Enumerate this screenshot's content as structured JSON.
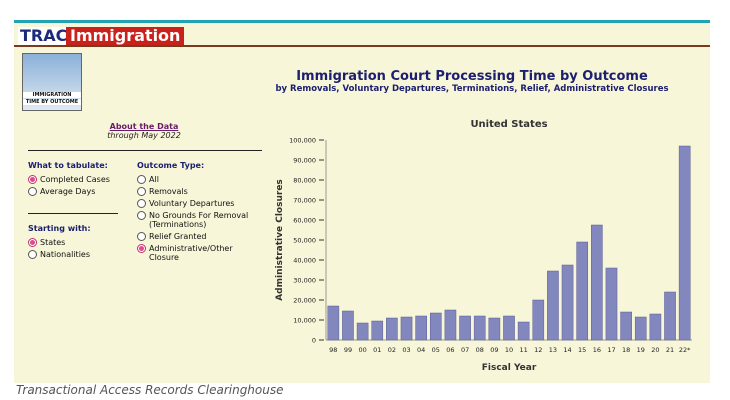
{
  "header": {
    "brand": "TRAC",
    "product": "Immigration",
    "logo_lines": [
      "IMMIGRATION",
      "TIME BY OUTCOME"
    ]
  },
  "page": {
    "title": "Immigration Court Processing Time by Outcome",
    "subtitle": "by Removals, Voluntary Departures, Terminations, Relief, Administrative Closures"
  },
  "sidebar": {
    "about_link": "About the Data",
    "through": "through May 2022",
    "tabulate": {
      "label": "What to tabulate:",
      "options": [
        "Completed Cases",
        "Average Days"
      ],
      "selected": 0
    },
    "starting": {
      "label": "Starting with:",
      "options": [
        "States",
        "Nationalities"
      ],
      "selected": 0
    },
    "outcome": {
      "label": "Outcome Type:",
      "options": [
        "All",
        "Removals",
        "Voluntary Departures",
        "No Grounds For Removal (Terminations)",
        "Relief Granted",
        "Administrative/Other Closure"
      ],
      "selected": 5
    }
  },
  "chart_data": {
    "type": "bar",
    "title": "United States",
    "x_label": "Fiscal Year",
    "y_label": "Administrative Closures",
    "color": "#8287bd",
    "categories": [
      "98",
      "99",
      "00",
      "01",
      "02",
      "03",
      "04",
      "05",
      "06",
      "07",
      "08",
      "09",
      "10",
      "11",
      "12",
      "13",
      "14",
      "15",
      "16",
      "17",
      "18",
      "19",
      "20",
      "21",
      "22*"
    ],
    "values": [
      17000,
      14500,
      8500,
      9500,
      11000,
      11500,
      12000,
      13500,
      15000,
      12000,
      12000,
      11000,
      12000,
      9000,
      20000,
      34500,
      37500,
      49000,
      57500,
      36000,
      14000,
      11500,
      13000,
      24000,
      97000
    ],
    "ylim": [
      0,
      100000
    ],
    "yticks": [
      0,
      {
        "value": 10000,
        "label": "10,000"
      },
      {
        "value": 20000,
        "label": "20,000"
      },
      {
        "value": 30000,
        "label": "30,000"
      },
      {
        "value": 40000,
        "label": "40,000"
      },
      {
        "value": 50000,
        "label": "50,000"
      },
      {
        "value": 60000,
        "label": "60,000"
      },
      {
        "value": 70000,
        "label": "70,000"
      },
      {
        "value": 80000,
        "label": "80,000"
      },
      {
        "value": 90000,
        "label": "90,000"
      },
      {
        "value": 100000,
        "label": "100,000"
      }
    ]
  },
  "caption": "Transactional Access Records Clearinghouse"
}
